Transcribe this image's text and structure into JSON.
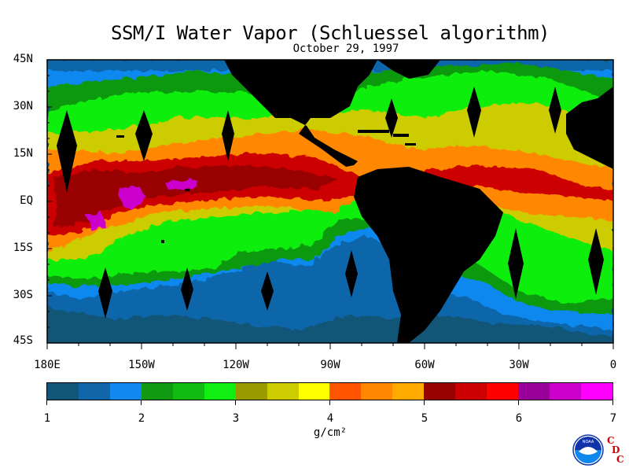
{
  "title": "SSM/I Water Vapor (Schluessel algorithm)",
  "date": "October 29, 1997",
  "y_axis_labels": [
    "45N",
    "30N",
    "15N",
    "EQ",
    "15S",
    "30S",
    "45S"
  ],
  "x_axis_labels": [
    "180E",
    "150W",
    "120W",
    "90W",
    "60W",
    "30W",
    "0"
  ],
  "colorbar": {
    "colors": [
      "#115577",
      "#1166aa",
      "#1188ee",
      "#119911",
      "#11bb11",
      "#11ee11",
      "#999900",
      "#cccc00",
      "#ffff00",
      "#ff5500",
      "#ff8800",
      "#ffaa00",
      "#990000",
      "#cc0000",
      "#ff0000",
      "#990099",
      "#cc00cc",
      "#ff00ff"
    ],
    "tick_labels": [
      "1",
      "2",
      "3",
      "4",
      "5",
      "6",
      "7"
    ],
    "unit": "g/cm²"
  },
  "logo": {
    "name": "NOAA",
    "text": "NOAA"
  },
  "cdc_label": [
    "C",
    "D",
    "C"
  ]
}
